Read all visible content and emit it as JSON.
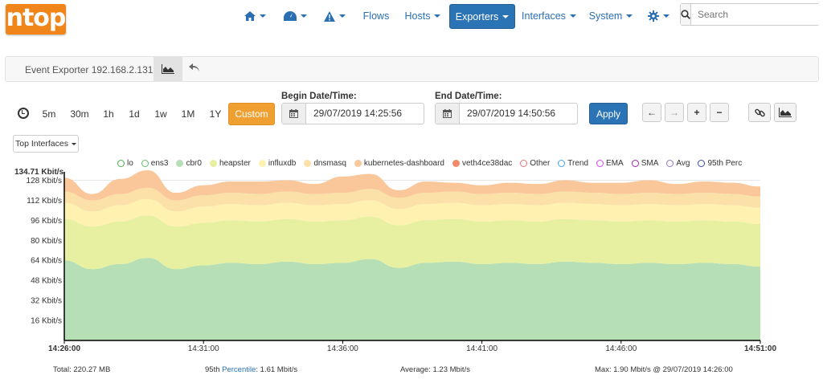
{
  "brand": {
    "logo": "ntop",
    "accent": "#f0851a"
  },
  "nav": {
    "home_icon": "home-icon",
    "dashboard_icon": "tachometer-icon",
    "alerts_icon": "warning-icon",
    "flows": "Flows",
    "hosts": "Hosts",
    "exporters": "Exporters",
    "interfaces": "Interfaces",
    "system": "System",
    "settings_icon": "gear-icon",
    "search_placeholder": "Search"
  },
  "breadcrumb": {
    "title": "Event Exporter 192.168.2.131"
  },
  "range": {
    "buttons": [
      "5m",
      "30m",
      "1h",
      "1d",
      "1w",
      "1M",
      "1Y"
    ],
    "custom": "Custom",
    "begin_label": "Begin Date/Time:",
    "begin_value": "29/07/2019 14:25:56",
    "end_label": "End Date/Time:",
    "end_value": "29/07/2019 14:50:56",
    "apply": "Apply",
    "top_interfaces": "Top Interfaces"
  },
  "chart_data": {
    "type": "area",
    "ymax_label": "134.71 Kbit/s",
    "ylim": [
      0,
      134.71
    ],
    "yticks": [
      {
        "v": 16,
        "label": "16 Kbit/s"
      },
      {
        "v": 32,
        "label": "32 Kbit/s"
      },
      {
        "v": 48,
        "label": "48 Kbit/s"
      },
      {
        "v": 64,
        "label": "64 Kbit/s"
      },
      {
        "v": 80,
        "label": "80 Kbit/s"
      },
      {
        "v": 96,
        "label": "96 Kbit/s"
      },
      {
        "v": 112,
        "label": "112 Kbit/s"
      },
      {
        "v": 128,
        "label": "128 Kbit/s"
      }
    ],
    "xticks": [
      {
        "t": 0,
        "label": "14:26:00",
        "bold": true
      },
      {
        "t": 5,
        "label": "14:31:00"
      },
      {
        "t": 10,
        "label": "14:36:00"
      },
      {
        "t": 15,
        "label": "14:41:00"
      },
      {
        "t": 20,
        "label": "14:46:00"
      },
      {
        "t": 25,
        "label": "14:51:00",
        "bold": true
      }
    ],
    "legend": [
      {
        "name": "lo",
        "color": "#4caf50"
      },
      {
        "name": "ens3",
        "color": "#66bb6a"
      },
      {
        "name": "cbr0",
        "color": "#b6dfb5",
        "filled": true
      },
      {
        "name": "heapster",
        "color": "#e6f0a0",
        "filled": true
      },
      {
        "name": "influxdb",
        "color": "#fff2b0",
        "filled": true
      },
      {
        "name": "dnsmasq",
        "color": "#fbe0a8",
        "filled": true
      },
      {
        "name": "kubernetes-dashboard",
        "color": "#f9c79a",
        "filled": true
      },
      {
        "name": "veth4ce38dac",
        "color": "#f28a6a",
        "filled": true
      },
      {
        "name": "Other",
        "color": "#e57373"
      },
      {
        "name": "Trend",
        "color": "#42a5f5"
      },
      {
        "name": "EMA",
        "color": "#e040fb"
      },
      {
        "name": "SMA",
        "color": "#9c27b0"
      },
      {
        "name": "Avg",
        "color": "#9575cd"
      },
      {
        "name": "95th Perc",
        "color": "#3949ab"
      }
    ],
    "x": [
      0,
      1,
      2,
      3,
      4,
      5,
      6,
      7,
      8,
      9,
      10,
      11,
      12,
      13,
      14,
      15,
      16,
      17,
      18,
      19,
      20,
      21,
      22,
      23,
      24,
      25
    ],
    "series": [
      {
        "name": "cbr0",
        "color": "#b6dfb5",
        "values": [
          64,
          57,
          61,
          66,
          57,
          60,
          62,
          61,
          63,
          61,
          62,
          65,
          58,
          62,
          63,
          61,
          62,
          61,
          63,
          62,
          61,
          62,
          61,
          62,
          61,
          59
        ]
      },
      {
        "name": "heapster",
        "color": "#e6f0a0",
        "values": [
          33,
          34,
          34,
          34,
          34,
          34,
          34,
          34,
          34,
          34,
          34,
          34,
          34,
          34,
          34,
          34,
          34,
          34,
          34,
          34,
          34,
          34,
          34,
          34,
          34,
          34
        ]
      },
      {
        "name": "influxdb",
        "color": "#fff2b0",
        "values": [
          13,
          12,
          13,
          13,
          12,
          13,
          13,
          13,
          13,
          13,
          13,
          13,
          13,
          13,
          13,
          13,
          13,
          13,
          13,
          13,
          13,
          13,
          13,
          13,
          13,
          13
        ]
      },
      {
        "name": "dnsmasq",
        "color": "#fbe0a8",
        "values": [
          9,
          9,
          9,
          9,
          9,
          9,
          9,
          9,
          9,
          9,
          9,
          9,
          9,
          9,
          9,
          9,
          9,
          9,
          9,
          9,
          9,
          9,
          9,
          9,
          9,
          9
        ]
      },
      {
        "name": "kubernetes-dashboard",
        "color": "#f9c79a",
        "values": [
          11,
          5,
          12,
          14,
          6,
          8,
          9,
          10,
          9,
          8,
          13,
          12,
          6,
          9,
          7,
          7,
          8,
          8,
          9,
          8,
          9,
          10,
          8,
          9,
          9,
          8
        ]
      }
    ]
  },
  "footer": {
    "total": "Total: 220.27 MB",
    "perc_prefix": "95th ",
    "perc_link": "Percentile",
    "perc_value": ": 1.61 Mbit/s",
    "average": "Average: 1.23 Mbit/s",
    "max": "Max: 1.90 Mbit/s @ 29/07/2019 14:26:00"
  }
}
